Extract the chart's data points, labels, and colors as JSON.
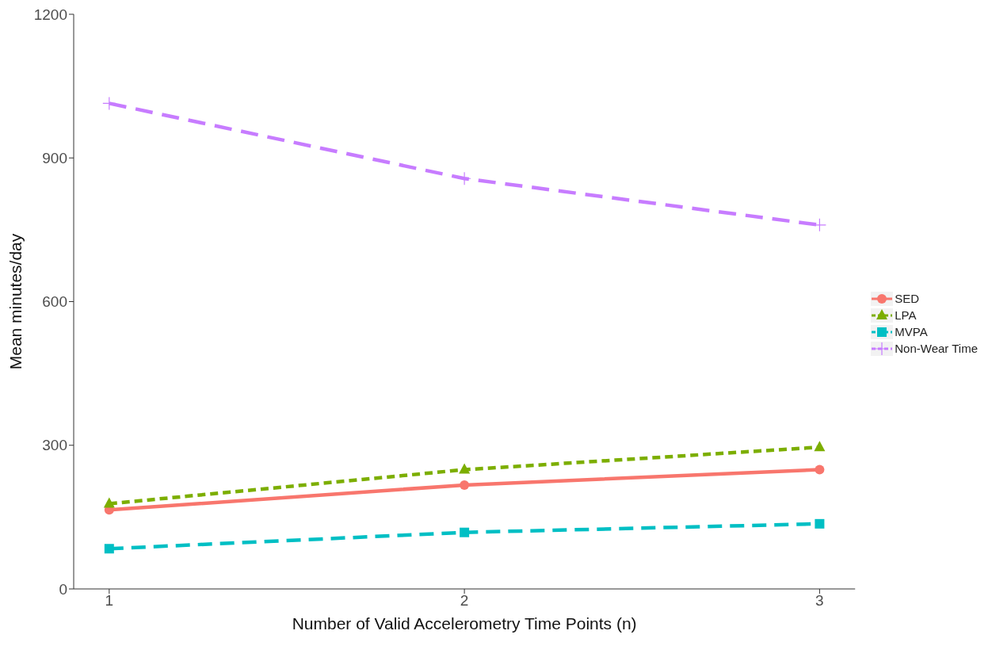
{
  "chart_data": {
    "type": "line",
    "xlabel": "Number of Valid Accelerometry Time Points (n)",
    "ylabel": "Mean minutes/day",
    "x": [
      1,
      2,
      3
    ],
    "xlim": [
      0.9,
      3.1
    ],
    "xticks": [
      1,
      2,
      3
    ],
    "ylim": [
      0,
      1200
    ],
    "yticks": [
      0,
      300,
      600,
      900,
      1200
    ],
    "grid": false,
    "legend": "right",
    "series": [
      {
        "name": "SED",
        "color": "#f8766d",
        "values": [
          165,
          217,
          249
        ],
        "marker": "circle",
        "line_style": "solid"
      },
      {
        "name": "LPA",
        "color": "#7cae00",
        "values": [
          178,
          249,
          296
        ],
        "marker": "triangle",
        "line_style": "dotted"
      },
      {
        "name": "MVPA",
        "color": "#00bfc4",
        "values": [
          84,
          118,
          136
        ],
        "marker": "square",
        "line_style": "dashed"
      },
      {
        "name": "Non-Wear Time",
        "color": "#c77cff",
        "values": [
          1014,
          857,
          760
        ],
        "marker": "cross",
        "line_style": "dashed"
      }
    ]
  }
}
